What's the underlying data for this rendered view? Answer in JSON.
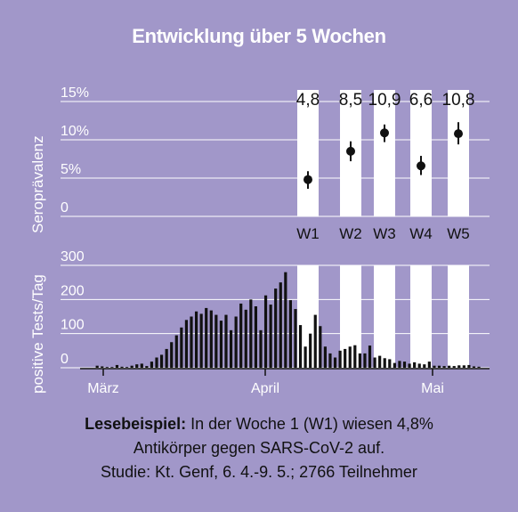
{
  "title": "Entwicklung über 5 Wochen",
  "chart_data": [
    {
      "type": "scatter",
      "ylabel": "Seroprävalenz",
      "yticks": [
        "15%",
        "10%",
        "5%",
        "0"
      ],
      "ylim": [
        0,
        15
      ],
      "categories": [
        "W1",
        "W2",
        "W3",
        "W4",
        "W5"
      ],
      "values": [
        4.8,
        8.5,
        10.9,
        6.6,
        10.8
      ],
      "value_labels": [
        "4,8",
        "8,5",
        "10,9",
        "6,6",
        "10,8"
      ],
      "error_low": [
        3.6,
        7.2,
        9.7,
        5.4,
        9.4
      ],
      "error_high": [
        5.9,
        9.8,
        12.0,
        7.9,
        12.3
      ],
      "grid": true
    },
    {
      "type": "bar",
      "ylabel": "positive Tests/Tag",
      "yticks": [
        "300",
        "200",
        "100",
        "0"
      ],
      "ylim": [
        0,
        300
      ],
      "xticks": [
        "März",
        "April",
        "Mai"
      ],
      "values": [
        0,
        6,
        4,
        2,
        2,
        8,
        3,
        2,
        6,
        10,
        12,
        5,
        18,
        30,
        38,
        55,
        75,
        95,
        118,
        140,
        150,
        165,
        158,
        175,
        168,
        155,
        138,
        155,
        110,
        150,
        188,
        170,
        200,
        180,
        110,
        212,
        185,
        232,
        250,
        280,
        198,
        172,
        125,
        62,
        100,
        155,
        122,
        62,
        42,
        30,
        50,
        55,
        62,
        66,
        42,
        42,
        65,
        30,
        35,
        28,
        25,
        14,
        20,
        18,
        12,
        16,
        12,
        10,
        18,
        6,
        6,
        5,
        6,
        5,
        7,
        7,
        8,
        4,
        3
      ],
      "week_bands": [
        "W1",
        "W2",
        "W3",
        "W4",
        "W5"
      ]
    }
  ],
  "caption": {
    "bold": "Lesebeispiel:",
    "line1": " In der Woche 1 (W1) wiesen 4,8%",
    "line2": "Antikörper gegen SARS-CoV-2 auf.",
    "line3": "Studie: Kt. Genf, 6. 4.-9. 5.; 2766 Teilnehmer"
  }
}
